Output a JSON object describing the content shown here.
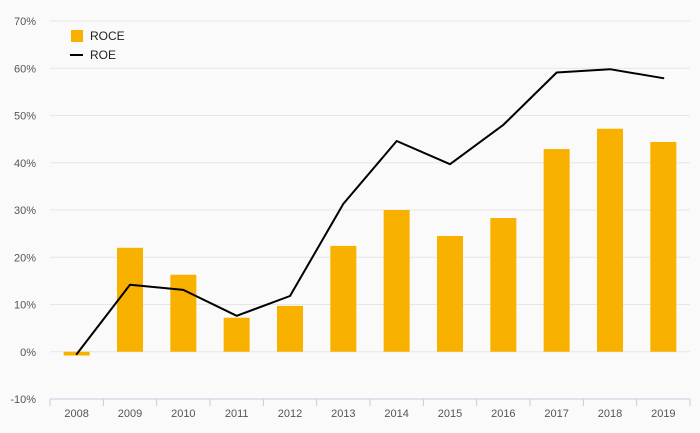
{
  "chart_data": {
    "type": "bar",
    "categories": [
      "2008",
      "2009",
      "2010",
      "2011",
      "2012",
      "2013",
      "2014",
      "2015",
      "2016",
      "2017",
      "2018",
      "2019"
    ],
    "series": [
      {
        "name": "ROCE",
        "type": "bar",
        "color": "#f9b100",
        "values": [
          -0.8,
          22.0,
          16.3,
          7.2,
          9.7,
          22.4,
          30.0,
          24.5,
          28.3,
          42.9,
          47.2,
          44.4
        ]
      },
      {
        "name": "ROE",
        "type": "line",
        "color": "#000000",
        "values": [
          -0.5,
          14.2,
          13.1,
          7.6,
          11.8,
          31.3,
          44.6,
          39.7,
          48.0,
          59.1,
          59.8,
          57.9
        ]
      }
    ],
    "y_ticks": [
      "-10%",
      "0%",
      "10%",
      "20%",
      "30%",
      "40%",
      "50%",
      "60%",
      "70%"
    ],
    "ylim": [
      -10,
      70
    ],
    "y_unit": "%",
    "grid": true,
    "legend_position": "top-left"
  }
}
